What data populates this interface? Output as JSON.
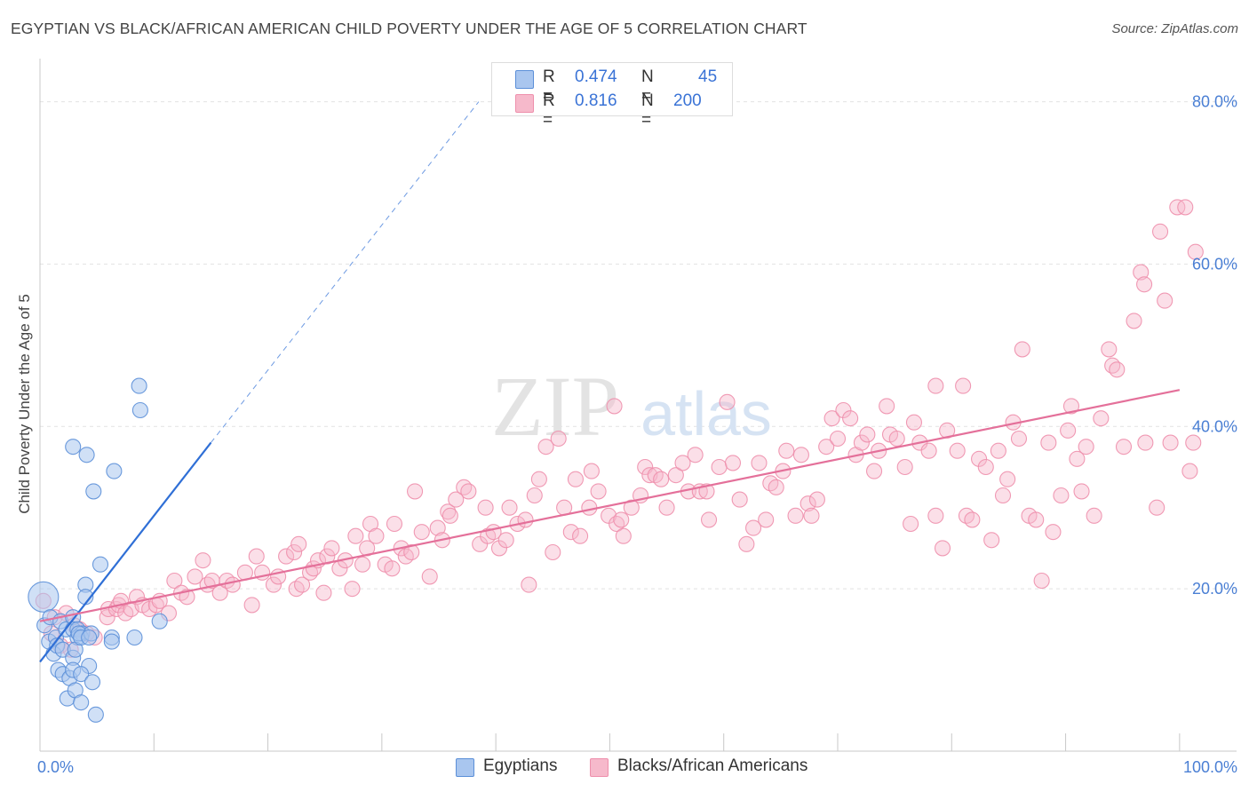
{
  "title": "EGYPTIAN VS BLACK/AFRICAN AMERICAN CHILD POVERTY UNDER THE AGE OF 5 CORRELATION CHART",
  "source": "Source: ZipAtlas.com",
  "watermark": {
    "zip": "ZIP",
    "atlas": "atlas"
  },
  "colors": {
    "blue_fill": "#a9c6ef",
    "blue_stroke": "#5b8fd8",
    "blue_line": "#2f6fd6",
    "pink_fill": "#f6b9cb",
    "pink_stroke": "#ee8fac",
    "pink_line": "#e4709a",
    "axis_label": "#4a7fd4"
  },
  "legend": {
    "rows": [
      {
        "r_label": "R =",
        "r_value": "0.474",
        "n_label": "N =",
        "n_value": "45"
      },
      {
        "r_label": "R =",
        "r_value": "0.816",
        "n_label": "N =",
        "n_value": "200"
      }
    ]
  },
  "bottom_legend": {
    "series1": "Egyptians",
    "series2": "Blacks/African Americans"
  },
  "chart_data": {
    "type": "scatter",
    "title": "EGYPTIAN VS BLACK/AFRICAN AMERICAN CHILD POVERTY UNDER THE AGE OF 5 CORRELATION CHART",
    "xlabel": "",
    "ylabel": "Child Poverty Under the Age of 5",
    "xlim": [
      0,
      105
    ],
    "ylim": [
      0,
      84
    ],
    "x_tick_labels": [
      {
        "value": 0,
        "label": "0.0%"
      },
      {
        "value": 100,
        "label": "100.0%"
      }
    ],
    "y_tick_labels": [
      {
        "value": 20,
        "label": "20.0%"
      },
      {
        "value": 40,
        "label": "40.0%"
      },
      {
        "value": 60,
        "label": "60.0%"
      },
      {
        "value": 80,
        "label": "80.0%"
      }
    ],
    "y_gridlines": [
      20,
      40,
      60,
      80
    ],
    "x_minor_ticks": [
      0,
      10,
      20,
      30,
      40,
      50,
      60,
      70,
      80,
      90,
      100
    ],
    "series": [
      {
        "name": "Egyptians",
        "color": "blue",
        "r": 0.474,
        "n": 45,
        "trend_solid": [
          [
            0,
            11
          ],
          [
            15,
            38
          ]
        ],
        "trend_dashed": [
          [
            15,
            38
          ],
          [
            38.5,
            80
          ]
        ],
        "points": [
          [
            0.3,
            19
          ],
          [
            0.4,
            15.5
          ],
          [
            0.8,
            13.5
          ],
          [
            0.9,
            16.5
          ],
          [
            1.2,
            12
          ],
          [
            1.4,
            14
          ],
          [
            1.5,
            13
          ],
          [
            1.8,
            16
          ],
          [
            1.6,
            10
          ],
          [
            2.0,
            12.5
          ],
          [
            2.3,
            15
          ],
          [
            2.0,
            9.5
          ],
          [
            2.4,
            6.5
          ],
          [
            2.9,
            16.5
          ],
          [
            2.9,
            15
          ],
          [
            2.9,
            11.5
          ],
          [
            2.6,
            9
          ],
          [
            2.9,
            10
          ],
          [
            3.1,
            7.5
          ],
          [
            3.3,
            15
          ],
          [
            3.7,
            14.5
          ],
          [
            3.3,
            14.0
          ],
          [
            3.1,
            12.5
          ],
          [
            3.4,
            14.5
          ],
          [
            3.6,
            14.0
          ],
          [
            2.9,
            37.5
          ],
          [
            4.1,
            36.5
          ],
          [
            4.7,
            32
          ],
          [
            4.0,
            20.5
          ],
          [
            4.0,
            19.0
          ],
          [
            4.3,
            10.5
          ],
          [
            3.6,
            9.5
          ],
          [
            4.6,
            8.5
          ],
          [
            3.6,
            6
          ],
          [
            4.9,
            4.5
          ],
          [
            4.5,
            14.5
          ],
          [
            4.3,
            14.0
          ],
          [
            6.3,
            14.0
          ],
          [
            6.3,
            13.5
          ],
          [
            6.5,
            34.5
          ],
          [
            5.3,
            23
          ],
          [
            8.7,
            45
          ],
          [
            8.8,
            42
          ],
          [
            8.3,
            14.0
          ],
          [
            10.5,
            16
          ]
        ]
      },
      {
        "name": "Blacks/African Americans",
        "color": "pink",
        "r": 0.816,
        "n": 200,
        "trend_solid": [
          [
            0,
            16
          ],
          [
            100,
            44.5
          ]
        ],
        "points": [
          [
            0.3,
            18.5
          ],
          [
            1.0,
            14.5
          ],
          [
            1.3,
            16.5
          ],
          [
            1.8,
            13
          ],
          [
            2.3,
            17
          ],
          [
            2.7,
            12.5
          ],
          [
            3.0,
            15.5
          ],
          [
            3.5,
            15
          ],
          [
            4.1,
            14.5
          ],
          [
            4.8,
            14
          ],
          [
            5.9,
            16.5
          ],
          [
            6.0,
            17.5
          ],
          [
            6.7,
            17.5
          ],
          [
            6.9,
            18
          ],
          [
            7.1,
            18.5
          ],
          [
            7.5,
            17
          ],
          [
            8.0,
            17.5
          ],
          [
            8.5,
            19
          ],
          [
            9.0,
            18
          ],
          [
            9.6,
            17.5
          ],
          [
            10.2,
            18
          ],
          [
            10.5,
            18.5
          ],
          [
            11.3,
            17
          ],
          [
            11.8,
            21
          ],
          [
            12.4,
            19.5
          ],
          [
            12.9,
            19
          ],
          [
            13.6,
            21.5
          ],
          [
            14.3,
            23.5
          ],
          [
            14.7,
            20.5
          ],
          [
            15.1,
            21
          ],
          [
            15.8,
            19.5
          ],
          [
            16.4,
            21
          ],
          [
            16.9,
            20.5
          ],
          [
            18.0,
            22
          ],
          [
            18.6,
            18
          ],
          [
            19.0,
            24
          ],
          [
            19.5,
            22
          ],
          [
            20.5,
            20.5
          ],
          [
            20.9,
            21.5
          ],
          [
            21.6,
            24
          ],
          [
            22.3,
            24.5
          ],
          [
            22.7,
            25.5
          ],
          [
            22.5,
            20
          ],
          [
            23.0,
            20.5
          ],
          [
            23.7,
            22
          ],
          [
            24.0,
            22.5
          ],
          [
            24.4,
            23.5
          ],
          [
            24.9,
            19.5
          ],
          [
            25.2,
            24
          ],
          [
            25.6,
            25
          ],
          [
            26.3,
            22.5
          ],
          [
            26.8,
            23.5
          ],
          [
            27.4,
            20
          ],
          [
            27.7,
            26.5
          ],
          [
            28.3,
            23
          ],
          [
            28.7,
            25
          ],
          [
            29.0,
            28
          ],
          [
            29.5,
            26.5
          ],
          [
            30.3,
            23
          ],
          [
            30.9,
            22.5
          ],
          [
            31.1,
            28
          ],
          [
            31.7,
            25
          ],
          [
            32.1,
            24
          ],
          [
            32.6,
            24.5
          ],
          [
            32.9,
            32
          ],
          [
            33.5,
            27
          ],
          [
            34.2,
            21.5
          ],
          [
            34.9,
            27.5
          ],
          [
            35.3,
            26
          ],
          [
            35.8,
            29.5
          ],
          [
            36.0,
            29
          ],
          [
            36.5,
            31
          ],
          [
            37.2,
            32.5
          ],
          [
            37.6,
            32
          ],
          [
            38.6,
            25.5
          ],
          [
            39.1,
            30
          ],
          [
            39.3,
            26.5
          ],
          [
            39.8,
            27
          ],
          [
            40.3,
            25
          ],
          [
            40.9,
            26
          ],
          [
            41.2,
            30
          ],
          [
            41.9,
            28
          ],
          [
            42.6,
            28.5
          ],
          [
            42.9,
            20.5
          ],
          [
            43.4,
            31.5
          ],
          [
            43.8,
            33.5
          ],
          [
            44.4,
            37.5
          ],
          [
            45.0,
            24.5
          ],
          [
            45.5,
            38.5
          ],
          [
            46.0,
            30
          ],
          [
            46.6,
            27
          ],
          [
            47.0,
            33.5
          ],
          [
            47.4,
            26.5
          ],
          [
            48.2,
            30
          ],
          [
            48.4,
            34.5
          ],
          [
            49.0,
            32
          ],
          [
            49.9,
            29
          ],
          [
            50.4,
            42.5
          ],
          [
            50.6,
            28
          ],
          [
            51.0,
            28.5
          ],
          [
            51.2,
            26.5
          ],
          [
            51.9,
            30
          ],
          [
            52.7,
            31.5
          ],
          [
            53.1,
            35
          ],
          [
            53.5,
            34
          ],
          [
            54.0,
            34
          ],
          [
            54.5,
            33.5
          ],
          [
            55.0,
            30
          ],
          [
            55.8,
            34
          ],
          [
            56.4,
            35.5
          ],
          [
            56.9,
            32
          ],
          [
            57.5,
            36.5
          ],
          [
            57.9,
            32
          ],
          [
            58.5,
            32
          ],
          [
            58.7,
            28.5
          ],
          [
            59.6,
            35
          ],
          [
            60.3,
            43
          ],
          [
            60.8,
            35.5
          ],
          [
            61.4,
            31
          ],
          [
            62.0,
            25.5
          ],
          [
            62.6,
            27.5
          ],
          [
            63.1,
            35.5
          ],
          [
            63.7,
            28.5
          ],
          [
            64.1,
            33
          ],
          [
            64.6,
            32.5
          ],
          [
            65.2,
            34.5
          ],
          [
            65.5,
            37
          ],
          [
            66.3,
            29
          ],
          [
            66.8,
            36.5
          ],
          [
            67.4,
            30.5
          ],
          [
            67.7,
            29
          ],
          [
            68.2,
            31
          ],
          [
            69.0,
            37.5
          ],
          [
            69.5,
            41
          ],
          [
            70.0,
            38.5
          ],
          [
            70.5,
            42
          ],
          [
            71.1,
            41
          ],
          [
            71.6,
            36.5
          ],
          [
            72.1,
            38
          ],
          [
            72.6,
            39
          ],
          [
            73.2,
            34.5
          ],
          [
            73.6,
            37
          ],
          [
            74.3,
            42.5
          ],
          [
            74.6,
            39
          ],
          [
            75.2,
            38.5
          ],
          [
            75.9,
            35
          ],
          [
            76.4,
            28
          ],
          [
            76.7,
            40.5
          ],
          [
            77.2,
            38
          ],
          [
            78.0,
            37
          ],
          [
            78.6,
            29
          ],
          [
            78.6,
            45
          ],
          [
            79.2,
            25
          ],
          [
            79.6,
            39.5
          ],
          [
            80.5,
            37
          ],
          [
            81.0,
            45
          ],
          [
            81.3,
            29
          ],
          [
            81.8,
            28.5
          ],
          [
            82.4,
            36
          ],
          [
            83.0,
            35
          ],
          [
            83.5,
            26
          ],
          [
            84.1,
            37
          ],
          [
            84.5,
            31.5
          ],
          [
            84.9,
            33.5
          ],
          [
            85.4,
            40.5
          ],
          [
            85.9,
            38.5
          ],
          [
            86.2,
            49.5
          ],
          [
            86.8,
            29
          ],
          [
            87.4,
            28.5
          ],
          [
            87.9,
            21
          ],
          [
            88.5,
            38
          ],
          [
            88.9,
            27
          ],
          [
            89.6,
            31.5
          ],
          [
            90.2,
            39.5
          ],
          [
            90.5,
            42.5
          ],
          [
            91.0,
            36
          ],
          [
            91.4,
            32
          ],
          [
            91.8,
            37.5
          ],
          [
            92.5,
            29
          ],
          [
            93.1,
            41
          ],
          [
            93.8,
            49.5
          ],
          [
            94.1,
            47.5
          ],
          [
            94.5,
            47
          ],
          [
            95.1,
            37.5
          ],
          [
            96.0,
            53
          ],
          [
            96.6,
            59
          ],
          [
            96.9,
            57.5
          ],
          [
            98.0,
            30
          ],
          [
            98.3,
            64
          ],
          [
            98.7,
            55.5
          ],
          [
            99.2,
            38
          ],
          [
            99.8,
            67
          ],
          [
            100.5,
            67
          ],
          [
            101.2,
            38
          ],
          [
            101.4,
            61.5
          ],
          [
            100.9,
            34.5
          ],
          [
            97.0,
            38
          ]
        ]
      }
    ]
  }
}
